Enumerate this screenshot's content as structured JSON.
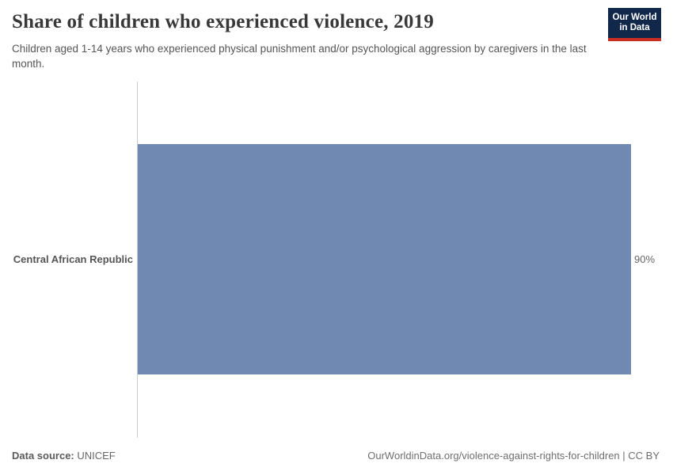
{
  "header": {
    "title": "Share of children who experienced violence, 2019",
    "subtitle": "Children aged 1-14 years who experienced physical punishment and/or psychological aggression by caregivers in the last month.",
    "logo": {
      "line1": "Our World",
      "line2": "in Data",
      "background_color": "#12284b",
      "accent_color": "#cc2e24"
    }
  },
  "chart_data": {
    "type": "bar",
    "orientation": "horizontal",
    "title": "Share of children who experienced violence, 2019",
    "subtitle": "Children aged 1-14 years who experienced physical punishment and/or psychological aggression by caregivers in the last month.",
    "categories": [
      "Central African Republic"
    ],
    "values": [
      90
    ],
    "value_labels": [
      "90%"
    ],
    "unit": "%",
    "xlabel": "",
    "ylabel": "",
    "xlim": [
      0,
      90
    ],
    "grid": false,
    "legend": false,
    "bar_color": "#7089b3",
    "axis_line_color": "#cccccc"
  },
  "footer": {
    "source_label": "Data source:",
    "source_value": " UNICEF",
    "citation": "OurWorldinData.org/violence-against-rights-for-children | CC BY"
  }
}
